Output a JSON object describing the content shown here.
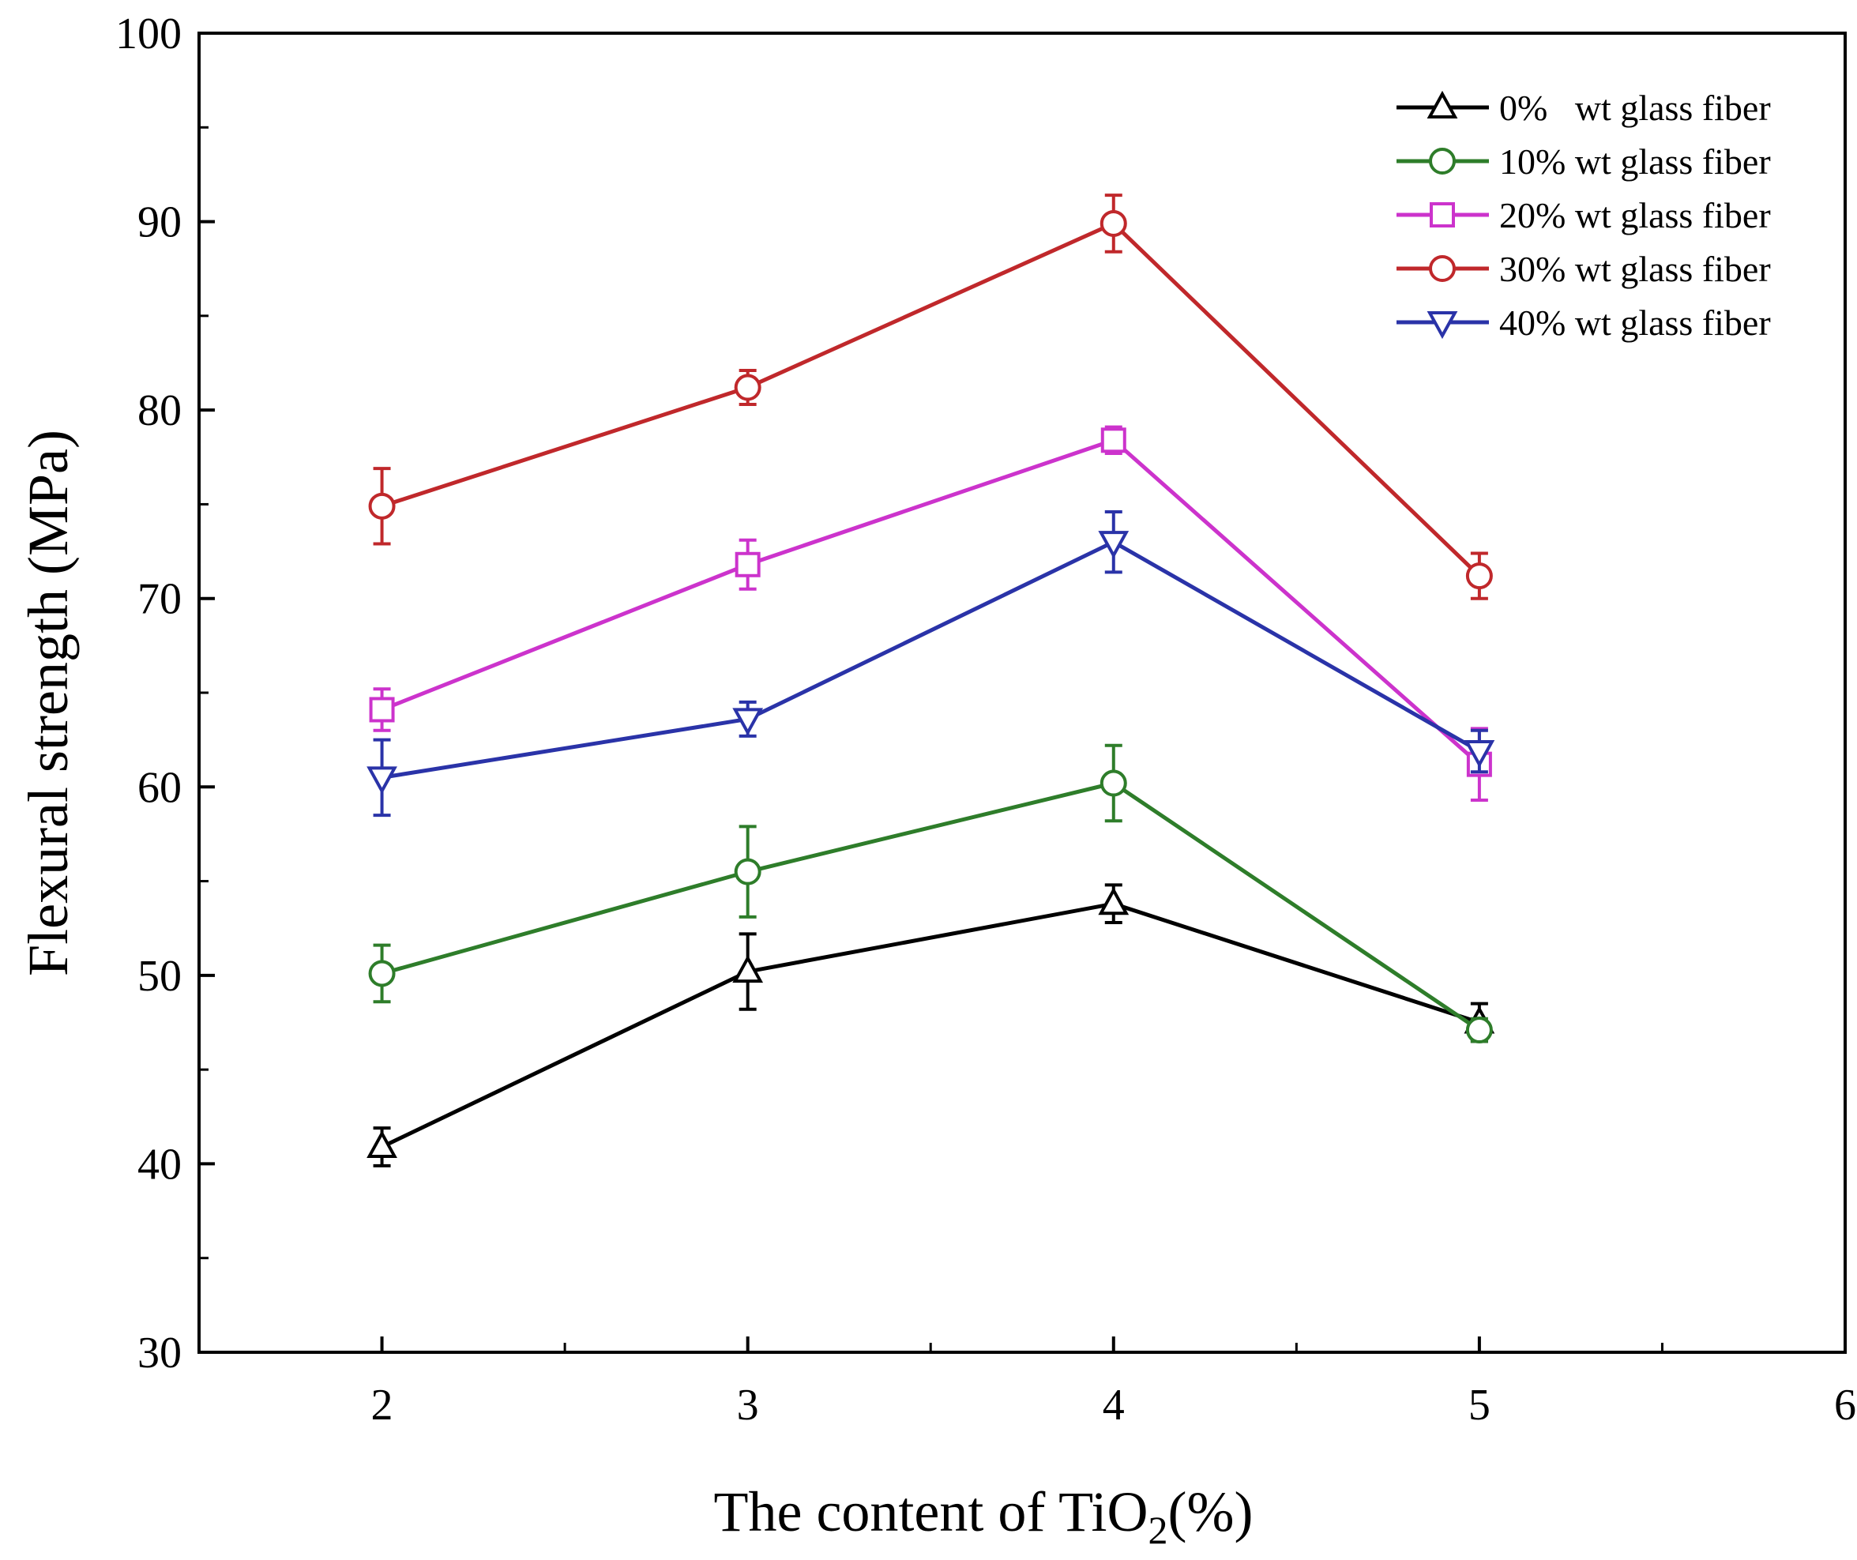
{
  "chart_data": {
    "type": "line",
    "title": "",
    "xlabel": "The content of TiO",
    "xlabel_sub": "2",
    "xlabel_suffix": "(%)",
    "ylabel": "Flexural strength (MPa)",
    "xlim": [
      1.5,
      6
    ],
    "ylim": [
      30,
      100
    ],
    "xticks": [
      2,
      3,
      4,
      5,
      6
    ],
    "yticks": [
      30,
      40,
      50,
      60,
      70,
      80,
      90,
      100
    ],
    "ylabel_ticks": [
      30,
      40,
      50,
      60,
      70,
      80,
      90,
      100
    ],
    "x": [
      2,
      3,
      4,
      5
    ],
    "legend_position": "top-right",
    "series": [
      {
        "name": "0%   wt glass fiber",
        "color": "#000000",
        "marker": "triangle-up",
        "values": [
          40.9,
          50.2,
          53.8,
          47.5
        ],
        "errors": [
          1.0,
          2.0,
          1.0,
          1.0
        ]
      },
      {
        "name": "10% wt glass fiber",
        "color": "#2e7d2a",
        "marker": "circle",
        "values": [
          50.1,
          55.5,
          60.2,
          47.1
        ],
        "errors": [
          1.5,
          2.4,
          2.0,
          0.6
        ]
      },
      {
        "name": "20% wt glass fiber",
        "color": "#cc33cc",
        "marker": "square",
        "values": [
          64.1,
          71.8,
          78.4,
          61.2
        ],
        "errors": [
          1.1,
          1.3,
          0.7,
          1.9
        ]
      },
      {
        "name": "30% wt glass fiber",
        "color": "#c0282b",
        "marker": "circle",
        "values": [
          74.9,
          81.2,
          89.9,
          71.2
        ],
        "errors": [
          2.0,
          0.9,
          1.5,
          1.2
        ]
      },
      {
        "name": "40% wt glass fiber",
        "color": "#2a33a8",
        "marker": "triangle-down",
        "values": [
          60.5,
          63.6,
          73.0,
          61.9
        ],
        "errors": [
          2.0,
          0.9,
          1.6,
          1.1
        ]
      }
    ]
  }
}
